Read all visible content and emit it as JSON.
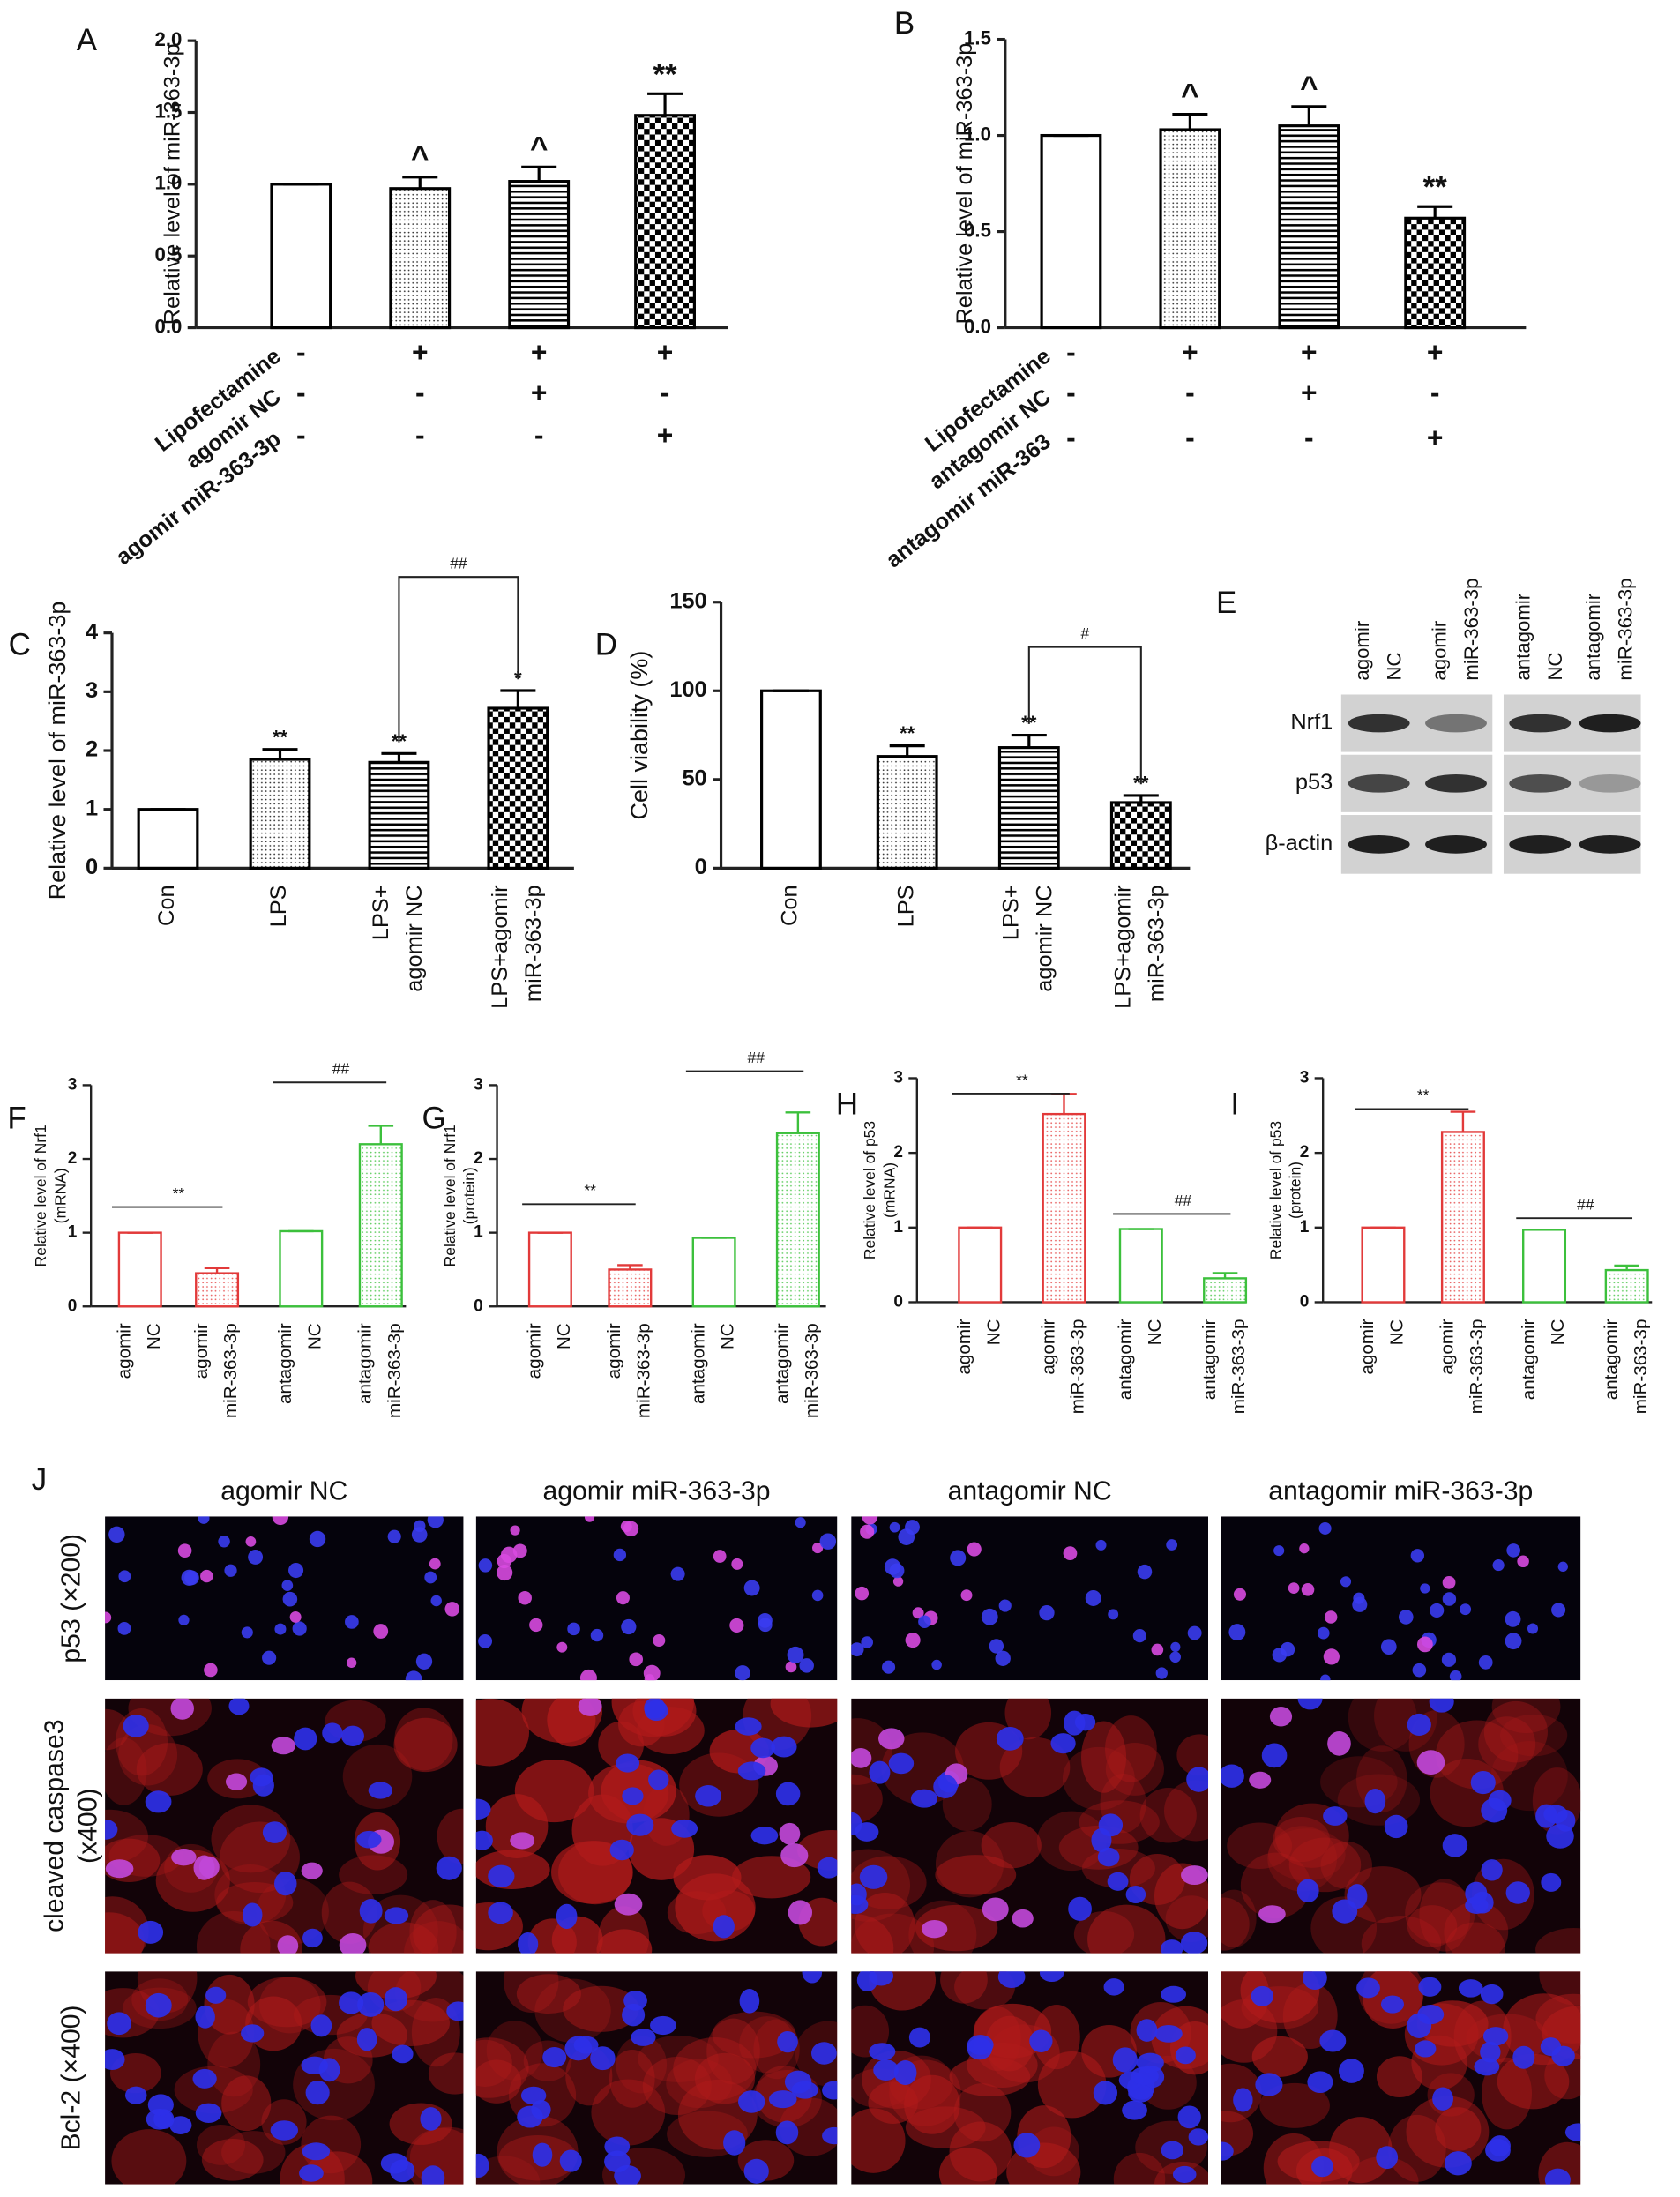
{
  "chart_data": [
    {
      "type": "bar",
      "label": "A",
      "ylabel": [
        "Relative level of miR-363-3p"
      ],
      "categories": [
        null,
        null,
        null,
        null
      ],
      "values": [
        1.0,
        0.97,
        1.02,
        1.48
      ],
      "errors": [
        0,
        0.08,
        0.1,
        0.15
      ],
      "annotations": [
        null,
        "^",
        "^",
        "**"
      ],
      "colors": [
        "#000000",
        "#000000",
        "#000000",
        "#000000"
      ],
      "patterns": [
        "none",
        "dots",
        "hlines",
        "checker"
      ],
      "ylim": [
        0,
        2
      ],
      "yticks": [
        {
          "value": 0,
          "label": "0.0"
        },
        {
          "value": 0.5,
          "label": "0.5"
        },
        {
          "value": 1,
          "label": "1.0"
        },
        {
          "value": 1.5,
          "label": "1.5"
        },
        {
          "value": 2,
          "label": "2.0"
        }
      ],
      "conditions": [
        {
          "name": "Lipofectamine",
          "signs": [
            "-",
            "+",
            "+",
            "+"
          ]
        },
        {
          "name": "agomir NC",
          "signs": [
            "-",
            "-",
            "+",
            "-"
          ]
        },
        {
          "name": "agomir miR-363-3p",
          "signs": [
            "-",
            "-",
            "-",
            "+"
          ]
        }
      ]
    },
    {
      "type": "bar",
      "label": "B",
      "ylabel": [
        "Relative level of miR-363-3p"
      ],
      "categories": [
        null,
        null,
        null,
        null
      ],
      "values": [
        1.0,
        1.03,
        1.05,
        0.57
      ],
      "errors": [
        0,
        0.08,
        0.1,
        0.06
      ],
      "annotations": [
        null,
        "^",
        "^",
        "**"
      ],
      "colors": [
        "#000000",
        "#000000",
        "#000000",
        "#000000"
      ],
      "patterns": [
        "none",
        "dots",
        "hlines",
        "checker"
      ],
      "ylim": [
        0,
        1.5
      ],
      "yticks": [
        {
          "value": 0,
          "label": "0.0"
        },
        {
          "value": 0.5,
          "label": "0.5"
        },
        {
          "value": 1,
          "label": "1.0"
        },
        {
          "value": 1.5,
          "label": "1.5"
        }
      ],
      "conditions": [
        {
          "name": "Lipofectamine",
          "signs": [
            "-",
            "+",
            "+",
            "+"
          ]
        },
        {
          "name": "antagomir NC",
          "signs": [
            "-",
            "-",
            "+",
            "-"
          ]
        },
        {
          "name": "antagomir miR-363",
          "signs": [
            "-",
            "-",
            "-",
            "+"
          ]
        }
      ]
    },
    {
      "type": "bar",
      "label": "C",
      "ylabel": [
        "Relative level of miR-363-3p"
      ],
      "categories": [
        [
          "Con"
        ],
        [
          "LPS"
        ],
        [
          "LPS+",
          "agomir NC"
        ],
        [
          "LPS+agomir",
          "miR-363-3p"
        ]
      ],
      "values": [
        1,
        1.85,
        1.8,
        2.72
      ],
      "errors": [
        0,
        0.17,
        0.15,
        0.3
      ],
      "annotations": [
        null,
        "**",
        "**",
        "*"
      ],
      "colors": [
        "#000000",
        "#000000",
        "#000000",
        "#000000"
      ],
      "patterns": [
        "none",
        "dots",
        "hlines",
        "checker"
      ],
      "ylim": [
        0,
        4
      ],
      "yticks": [
        0,
        1,
        2,
        3,
        4
      ],
      "brackets": [
        {
          "between": [
            2,
            3
          ],
          "text": "##"
        }
      ]
    },
    {
      "type": "bar",
      "label": "D",
      "ylabel": [
        "Cell viability (%)"
      ],
      "categories": [
        [
          "Con"
        ],
        [
          "LPS"
        ],
        [
          "LPS+",
          "agomir NC"
        ],
        [
          "LPS+agomir",
          "miR-363-3p"
        ]
      ],
      "values": [
        100,
        63,
        68,
        37
      ],
      "errors": [
        0,
        6,
        7,
        4
      ],
      "annotations": [
        null,
        "**",
        "**",
        "**"
      ],
      "colors": [
        "#000000",
        "#000000",
        "#000000",
        "#000000"
      ],
      "patterns": [
        "none",
        "dots",
        "hlines",
        "checker"
      ],
      "ylim": [
        0,
        150
      ],
      "yticks": [
        0,
        50,
        100,
        150
      ],
      "brackets": [
        {
          "between": [
            2,
            3
          ],
          "text": "#"
        }
      ]
    },
    {
      "type": "bar",
      "label": "F",
      "ylabel": [
        "Relative level of Nrf1",
        "(mRNA)"
      ],
      "categories": [
        [
          "agomir",
          "NC"
        ],
        [
          "agomir",
          "miR-363-3p"
        ],
        [
          "antagomir",
          "NC"
        ],
        [
          "antagomir",
          "miR-363-3p"
        ]
      ],
      "values": [
        1,
        0.45,
        1.02,
        2.2
      ],
      "errors": [
        0,
        0.07,
        0,
        0.25
      ],
      "annotations": [
        null,
        null,
        null,
        null
      ],
      "colors": [
        "#e23a3a",
        "#e23a3a",
        "#3cc03c",
        "#3cc03c"
      ],
      "patterns": [
        "none",
        "dots",
        "none",
        "dots"
      ],
      "ylim": [
        0,
        3
      ],
      "yticks": [
        0,
        1,
        2,
        3
      ],
      "brackets": [
        {
          "between": [
            0,
            1
          ],
          "text": "**"
        },
        {
          "between": [
            2,
            3
          ],
          "text": "##"
        }
      ]
    },
    {
      "type": "bar",
      "label": "G",
      "ylabel": [
        "Relative level of Nrf1",
        "(protein)"
      ],
      "categories": [
        [
          "agomir",
          "NC"
        ],
        [
          "agomir",
          "miR-363-3p"
        ],
        [
          "antagomir",
          "NC"
        ],
        [
          "antagomir",
          "miR-363-3p"
        ]
      ],
      "values": [
        1,
        0.5,
        0.93,
        2.35
      ],
      "errors": [
        0,
        0.06,
        0,
        0.28
      ],
      "annotations": [
        null,
        null,
        null,
        null
      ],
      "colors": [
        "#e23a3a",
        "#e23a3a",
        "#3cc03c",
        "#3cc03c"
      ],
      "patterns": [
        "none",
        "dots",
        "none",
        "dots"
      ],
      "ylim": [
        0,
        3
      ],
      "yticks": [
        0,
        1,
        2,
        3
      ],
      "brackets": [
        {
          "between": [
            0,
            1
          ],
          "text": "**"
        },
        {
          "between": [
            2,
            3
          ],
          "text": "##"
        }
      ]
    },
    {
      "type": "bar",
      "label": "H",
      "ylabel": [
        "Relative level of p53",
        "(mRNA)"
      ],
      "categories": [
        [
          "agomir",
          "NC"
        ],
        [
          "agomir",
          "miR-363-3p"
        ],
        [
          "antagomir",
          "NC"
        ],
        [
          "antagomir",
          "miR-363-3p"
        ]
      ],
      "values": [
        1,
        2.52,
        0.98,
        0.32
      ],
      "errors": [
        0,
        0.27,
        0,
        0.07
      ],
      "annotations": [
        null,
        null,
        null,
        null
      ],
      "colors": [
        "#e23a3a",
        "#e23a3a",
        "#3cc03c",
        "#3cc03c"
      ],
      "patterns": [
        "none",
        "dots",
        "none",
        "dots"
      ],
      "ylim": [
        0,
        3
      ],
      "yticks": [
        0,
        1,
        2,
        3
      ],
      "brackets": [
        {
          "between": [
            0,
            1
          ],
          "text": "**"
        },
        {
          "between": [
            2,
            3
          ],
          "text": "##"
        }
      ]
    },
    {
      "type": "bar",
      "label": "I",
      "ylabel": [
        "Relative level of p53",
        "(protein)"
      ],
      "categories": [
        [
          "agomir",
          "NC"
        ],
        [
          "agomir",
          "miR-363-3p"
        ],
        [
          "antagomir",
          "NC"
        ],
        [
          "antagomir",
          "miR-363-3p"
        ]
      ],
      "values": [
        1,
        2.28,
        0.97,
        0.43
      ],
      "errors": [
        0,
        0.27,
        0,
        0.06
      ],
      "annotations": [
        null,
        null,
        null,
        null
      ],
      "colors": [
        "#e23a3a",
        "#e23a3a",
        "#3cc03c",
        "#3cc03c"
      ],
      "patterns": [
        "none",
        "dots",
        "none",
        "dots"
      ],
      "ylim": [
        0,
        3
      ],
      "yticks": [
        0,
        1,
        2,
        3
      ],
      "brackets": [
        {
          "between": [
            0,
            1
          ],
          "text": "**"
        },
        {
          "between": [
            2,
            3
          ],
          "text": "##"
        }
      ]
    }
  ],
  "blot": {
    "label": "E",
    "lanes": [
      [
        "agomir",
        "NC"
      ],
      [
        "agomir",
        "miR-363-3p"
      ],
      [
        "antagomir",
        "NC"
      ],
      [
        "antagomir",
        "miR-363-3p"
      ]
    ],
    "rows": [
      "Nrf1",
      "p53",
      "β-actin"
    ]
  },
  "micrographs": {
    "label": "J",
    "columns": [
      "agomir NC",
      "agomir miR-363-3p",
      "antagomir NC",
      "antagomir miR-363-3p"
    ],
    "rows": [
      [
        "p53 (×200)"
      ],
      [
        "cleaved caspase3",
        "(x400)"
      ],
      [
        "Bcl-2 (×400)"
      ]
    ]
  }
}
